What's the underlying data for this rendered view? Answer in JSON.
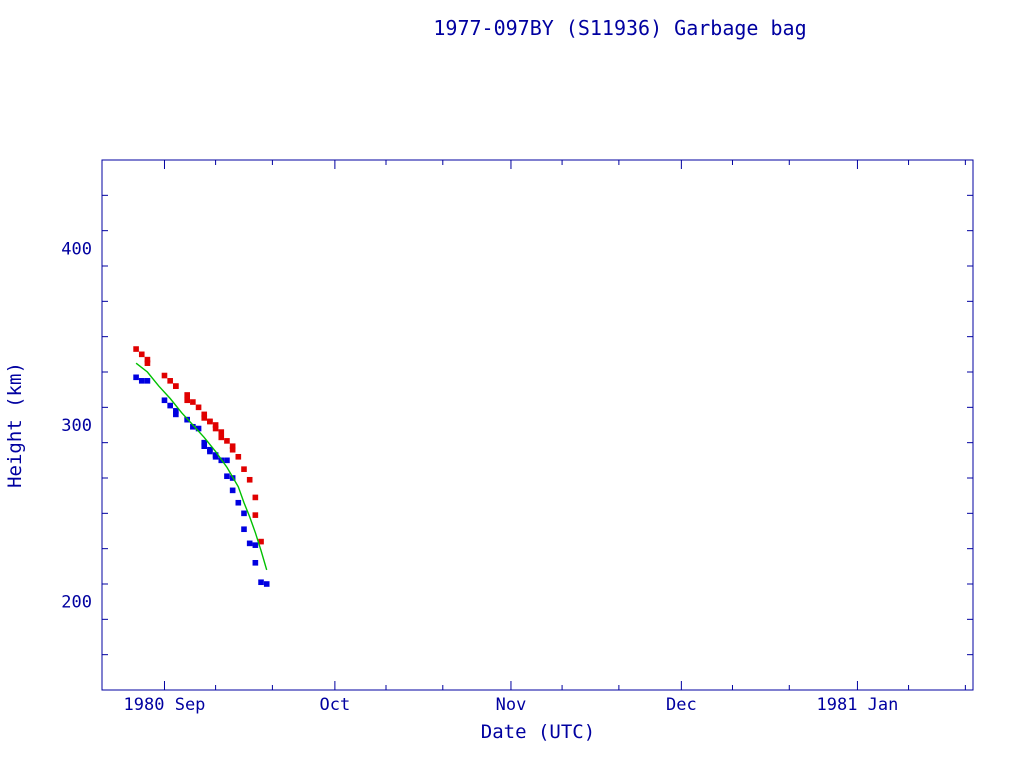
{
  "chart_data": {
    "type": "scatter",
    "title": "1977-097BY (S11936) Garbage bag",
    "xlabel": "Date (UTC)",
    "ylabel": "Height (km)",
    "x_ticks": [
      "1980 Sep",
      "Oct",
      "Nov",
      "Dec",
      "1981 Jan"
    ],
    "y_ticks": [
      200,
      300,
      400
    ],
    "ylim": [
      150,
      450
    ],
    "colors": {
      "axis": "#0000a0",
      "apogee": "#e00000",
      "perigee": "#0000e0",
      "fit": "#00c000"
    },
    "series": [
      {
        "x": [
          "1980-08-27",
          "1980-08-28",
          "1980-08-29",
          "1980-08-29",
          "1980-09-01",
          "1980-09-02",
          "1980-09-03",
          "1980-09-03",
          "1980-09-05",
          "1980-09-05",
          "1980-09-06",
          "1980-09-07",
          "1980-09-08",
          "1980-09-08",
          "1980-09-09",
          "1980-09-09",
          "1980-09-10",
          "1980-09-10",
          "1980-09-11",
          "1980-09-11",
          "1980-09-12",
          "1980-09-13",
          "1980-09-13",
          "1980-09-14",
          "1980-09-15",
          "1980-09-16",
          "1980-09-17",
          "1980-09-17",
          "1980-09-18"
        ],
        "y": [
          343,
          340,
          337,
          335,
          328,
          325,
          322,
          322,
          317,
          314,
          313,
          310,
          306,
          304,
          302,
          302,
          300,
          298,
          296,
          293,
          291,
          288,
          286,
          282,
          275,
          269,
          259,
          249,
          234
        ]
      },
      {
        "x": [
          "1980-08-27",
          "1980-08-28",
          "1980-08-29",
          "1980-09-01",
          "1980-09-02",
          "1980-09-03",
          "1980-09-03",
          "1980-09-05",
          "1980-09-05",
          "1980-09-06",
          "1980-09-07",
          "1980-09-08",
          "1980-09-08",
          "1980-09-09",
          "1980-09-09",
          "1980-09-10",
          "1980-09-10",
          "1980-09-11",
          "1980-09-12",
          "1980-09-12",
          "1980-09-13",
          "1980-09-13",
          "1980-09-14",
          "1980-09-15",
          "1980-09-15",
          "1980-09-16",
          "1980-09-17",
          "1980-09-17",
          "1980-09-18",
          "1980-09-19"
        ],
        "y": [
          327,
          325,
          325,
          314,
          311,
          308,
          306,
          303,
          303,
          299,
          298,
          290,
          288,
          286,
          285,
          283,
          282,
          280,
          280,
          271,
          270,
          263,
          256,
          250,
          241,
          233,
          232,
          222,
          211,
          210
        ]
      },
      {
        "x": [
          "1980-08-27",
          "1980-08-29",
          "1980-08-31",
          "1980-09-02",
          "1980-09-04",
          "1980-09-06",
          "1980-09-08",
          "1980-09-10",
          "1980-09-12",
          "1980-09-14",
          "1980-09-15",
          "1980-09-16",
          "1980-09-17",
          "1980-09-18",
          "1980-09-19"
        ],
        "y": [
          335,
          330,
          322,
          315,
          307,
          300,
          293,
          285,
          276,
          265,
          256,
          248,
          239,
          229,
          218
        ]
      }
    ]
  }
}
